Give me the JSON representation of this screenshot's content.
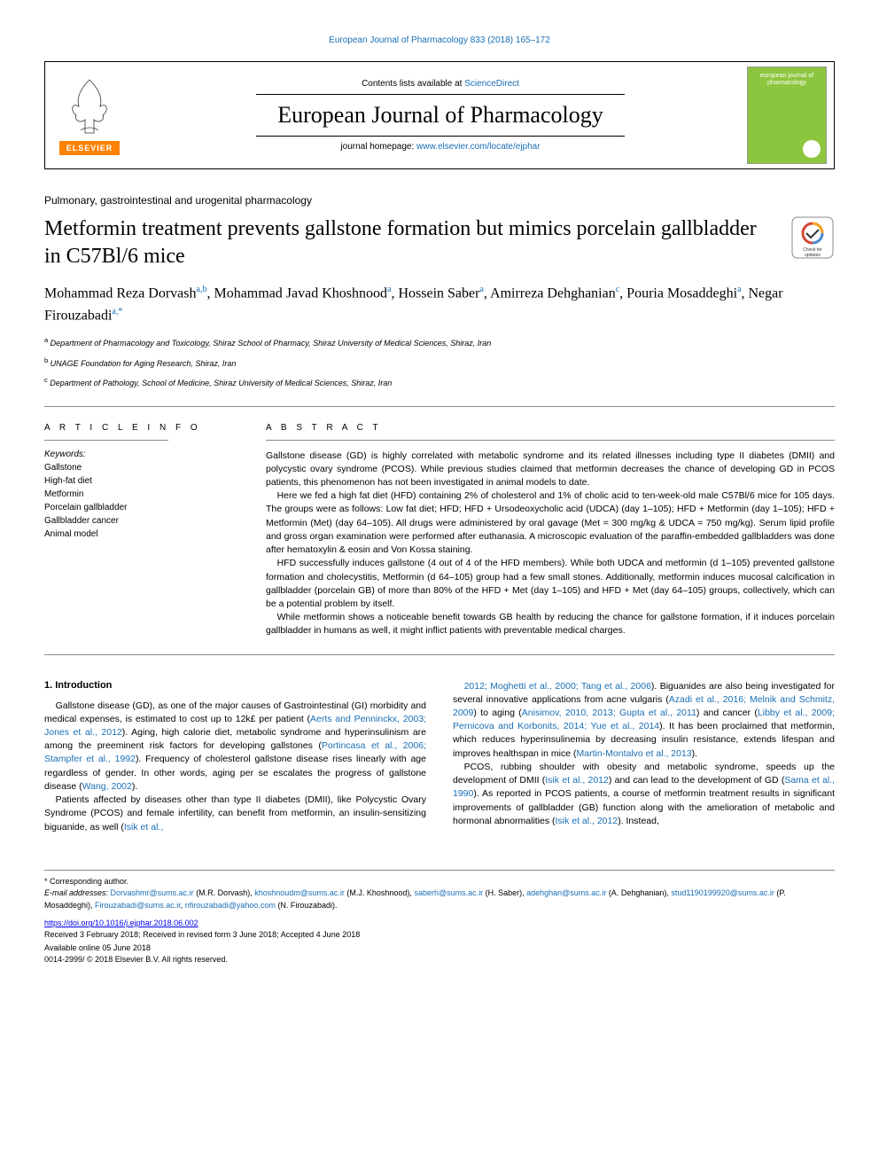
{
  "top_link": "European Journal of Pharmacology 833 (2018) 165–172",
  "header": {
    "contents_prefix": "Contents lists available at ",
    "contents_link": "ScienceDirect",
    "journal_title": "European Journal of Pharmacology",
    "homepage_prefix": "journal homepage: ",
    "homepage_link": "www.elsevier.com/locate/ejphar",
    "elsevier": "ELSEVIER",
    "cover_text": "european journal of pharmacology"
  },
  "section_label": "Pulmonary, gastrointestinal and urogenital pharmacology",
  "title": "Metformin treatment prevents gallstone formation but mimics porcelain gallbladder in C57Bl/6 mice",
  "authors_html": "Mohammad Reza Dorvash<sup>a,b</sup>, Mohammad Javad Khoshnood<sup>a</sup>, Hossein Saber<sup>a</sup>, Amirreza Dehghanian<sup>c</sup>, Pouria Mosaddeghi<sup>a</sup>, Negar Firouzabadi<sup>a,*</sup>",
  "affiliations": [
    "a Department of Pharmacology and Toxicology, Shiraz School of Pharmacy, Shiraz University of Medical Sciences, Shiraz, Iran",
    "b UNAGE Foundation for Aging Research, Shiraz, Iran",
    "c Department of Pathology, School of Medicine, Shiraz University of Medical Sciences, Shiraz, Iran"
  ],
  "info_heading": "A R T I C L E  I N F O",
  "keywords_label": "Keywords:",
  "keywords": [
    "Gallstone",
    "High-fat diet",
    "Metformin",
    "Porcelain gallbladder",
    "Gallbladder cancer",
    "Animal model"
  ],
  "abstract_heading": "A B S T R A C T",
  "abstract_paragraphs": [
    "Gallstone disease (GD) is highly correlated with metabolic syndrome and its related illnesses including type II diabetes (DMII) and polycystic ovary syndrome (PCOS). While previous studies claimed that metformin decreases the chance of developing GD in PCOS patients, this phenomenon has not been investigated in animal models to date.",
    "Here we fed a high fat diet (HFD) containing 2% of cholesterol and 1% of cholic acid to ten-week-old male C57Bl/6 mice for 105 days. The groups were as follows: Low fat diet; HFD; HFD + Ursodeoxycholic acid (UDCA) (day 1–105); HFD + Metformin (day 1–105); HFD + Metformin (Met) (day 64–105). All drugs were administered by oral gavage (Met = 300 mg/kg & UDCA = 750 mg/kg). Serum lipid profile and gross organ examination were performed after euthanasia. A microscopic evaluation of the paraffin-embedded gallbladders was done after hematoxylin & eosin and Von Kossa staining.",
    "HFD successfully induces gallstone (4 out of 4 of the HFD members). While both UDCA and metformin (d 1–105) prevented gallstone formation and cholecystitis, Metformin (d 64–105) group had a few small stones. Additionally, metformin induces mucosal calcification in gallbladder (porcelain GB) of more than 80% of the HFD + Met (day 1–105) and HFD + Met (day 64–105) groups, collectively, which can be a potential problem by itself.",
    "While metformin shows a noticeable benefit towards GB health by reducing the chance for gallstone formation, if it induces porcelain gallbladder in humans as well, it might inflict patients with preventable medical charges."
  ],
  "intro_heading": "1. Introduction",
  "col1_paragraphs": [
    "Gallstone disease (GD), as one of the major causes of Gastrointestinal (GI) morbidity and medical expenses, is estimated to cost up to 12k£ per patient (<a href='#'>Aerts and Penninckx, 2003; Jones et al., 2012</a>). Aging, high calorie diet, metabolic syndrome and hyperinsulinism are among the preeminent risk factors for developing gallstones (<a href='#'>Portincasa et al., 2006; Stampfer et al., 1992</a>). Frequency of cholesterol gallstone disease rises linearly with age regardless of gender. In other words, aging per se escalates the progress of gallstone disease (<a href='#'>Wang, 2002</a>).",
    "Patients affected by diseases other than type II diabetes (DMII), like Polycystic Ovary Syndrome (PCOS) and female infertility, can benefit from metformin, an insulin-sensitizing biguanide, as well (<a href='#'>Isik et al.,</a>"
  ],
  "col2_paragraphs": [
    "<a href='#'>2012; Moghetti et al., 2000; Tang et al., 2006</a>). Biguanides are also being investigated for several innovative applications from acne vulgaris (<a href='#'>Azadi et al., 2016; Melnik and Schmitz, 2009</a>) to aging (<a href='#'>Anisimov, 2010, 2013; Gupta et al., 2011</a>) and cancer (<a href='#'>Libby et al., 2009; Pernicova and Korbonits, 2014; Yue et al., 2014</a>). It has been proclaimed that metformin, which reduces hyperinsulinemia by decreasing insulin resistance, extends lifespan and improves healthspan in mice (<a href='#'>Martin-Montalvo et al., 2013</a>).",
    "PCOS, rubbing shoulder with obesity and metabolic syndrome, speeds up the development of DMII (<a href='#'>Isik et al., 2012</a>) and can lead to the development of GD (<a href='#'>Sama et al., 1990</a>). As reported in PCOS patients, a course of metformin treatment results in significant improvements of gallbladder (GB) function along with the amelioration of metabolic and hormonal abnormalities (<a href='#'>Isik et al., 2012</a>). Instead,"
  ],
  "corresponding": "* Corresponding author.",
  "emails_prefix": "E-mail addresses: ",
  "emails": "Dorvashmr@sums.ac.ir (M.R. Dorvash), khoshnoudm@sums.ac.ir (M.J. Khoshnood), saberh@sums.ac.ir (H. Saber), adehghan@sums.ac.ir (A. Dehghanian), stud1190199920@sums.ac.ir (P. Mosaddeghi), Firouzabadi@sums.ac.ir, nfirouzabadi@yahoo.com (N. Firouzabadi).",
  "doi": "https://doi.org/10.1016/j.ejphar.2018.06.002",
  "history": "Received 3 February 2018; Received in revised form 3 June 2018; Accepted 4 June 2018",
  "available": "Available online 05 June 2018",
  "copyright": "0014-2999/ © 2018 Elsevier B.V. All rights reserved.",
  "colors": {
    "link": "#1a6fb5",
    "elsevier_orange": "#ff8200",
    "journal_green": "#8CC63F"
  }
}
